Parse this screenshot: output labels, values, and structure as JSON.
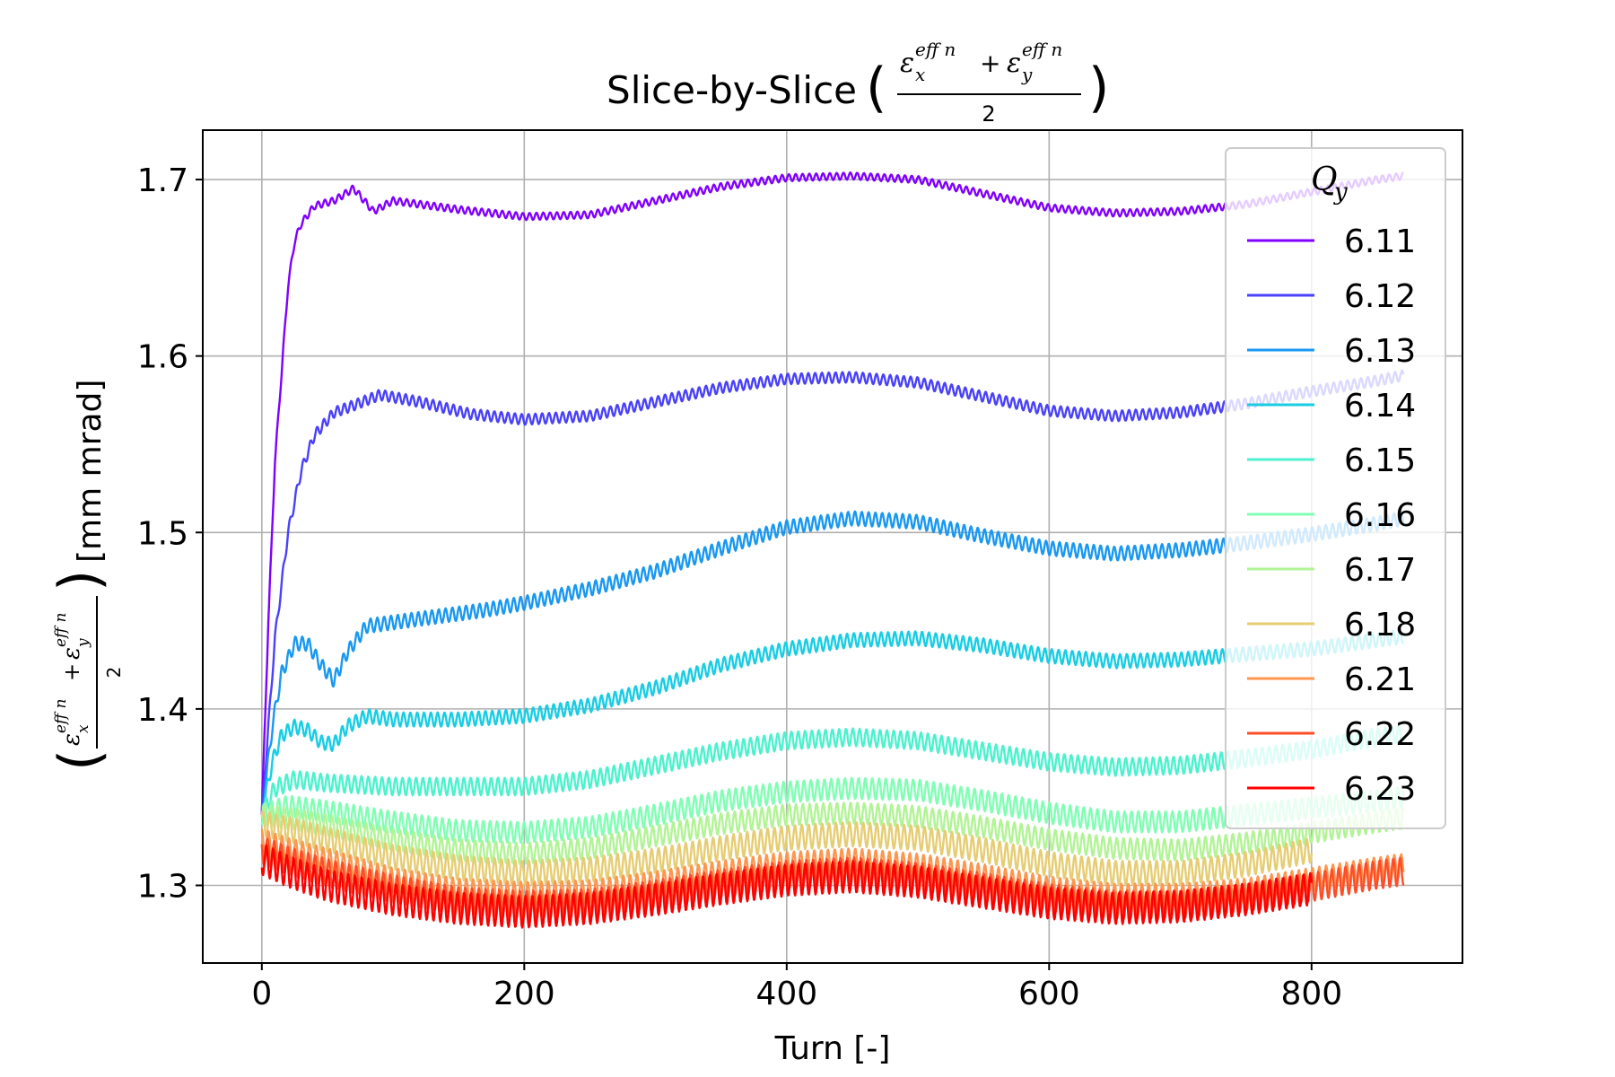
{
  "chart_data": {
    "type": "line",
    "title": "Slice-by-Slice",
    "xlabel": "Turn [-]",
    "ylabel_unit": "[mm mrad]",
    "ylabel_expr": {
      "numerator_left": "ε",
      "sub_x": "x",
      "sup_left": "eff n",
      "plus": "+",
      "numerator_right": "ε",
      "sub_y": "y",
      "sup_right": "eff n",
      "denominator": "2"
    },
    "xlim": [
      -45,
      915
    ],
    "ylim": [
      1.256,
      1.728
    ],
    "xticks": [
      0,
      200,
      400,
      600,
      800
    ],
    "yticks": [
      1.3,
      1.4,
      1.5,
      1.6,
      1.7
    ],
    "ytick_labels": [
      "1.3",
      "1.4",
      "1.5",
      "1.6",
      "1.7"
    ],
    "xtick_labels": [
      "0",
      "200",
      "400",
      "600",
      "800"
    ],
    "grid": true,
    "legend": {
      "title_base": "Q",
      "title_sub": "y",
      "placement": "top-right"
    },
    "series": [
      {
        "name": "6.11",
        "color": "#8000ff",
        "x_end": 870,
        "osc_amp": 0.002,
        "points": [
          [
            0,
            1.34
          ],
          [
            5,
            1.45
          ],
          [
            10,
            1.54
          ],
          [
            15,
            1.59
          ],
          [
            20,
            1.64
          ],
          [
            25,
            1.665
          ],
          [
            30,
            1.675
          ],
          [
            40,
            1.685
          ],
          [
            55,
            1.688
          ],
          [
            70,
            1.695
          ],
          [
            85,
            1.682
          ],
          [
            100,
            1.688
          ],
          [
            120,
            1.686
          ],
          [
            150,
            1.683
          ],
          [
            200,
            1.679
          ],
          [
            250,
            1.68
          ],
          [
            300,
            1.688
          ],
          [
            350,
            1.696
          ],
          [
            400,
            1.701
          ],
          [
            450,
            1.702
          ],
          [
            500,
            1.7
          ],
          [
            550,
            1.692
          ],
          [
            600,
            1.684
          ],
          [
            650,
            1.681
          ],
          [
            700,
            1.682
          ],
          [
            750,
            1.686
          ],
          [
            800,
            1.693
          ],
          [
            850,
            1.7
          ],
          [
            870,
            1.702
          ]
        ]
      },
      {
        "name": "6.12",
        "color": "#4a41fb",
        "x_end": 870,
        "osc_amp": 0.003,
        "points": [
          [
            0,
            1.34
          ],
          [
            10,
            1.44
          ],
          [
            20,
            1.5
          ],
          [
            30,
            1.535
          ],
          [
            40,
            1.555
          ],
          [
            55,
            1.568
          ],
          [
            70,
            1.572
          ],
          [
            90,
            1.578
          ],
          [
            120,
            1.574
          ],
          [
            160,
            1.567
          ],
          [
            200,
            1.564
          ],
          [
            250,
            1.566
          ],
          [
            300,
            1.574
          ],
          [
            350,
            1.582
          ],
          [
            400,
            1.587
          ],
          [
            450,
            1.588
          ],
          [
            500,
            1.585
          ],
          [
            550,
            1.577
          ],
          [
            600,
            1.569
          ],
          [
            650,
            1.566
          ],
          [
            700,
            1.568
          ],
          [
            750,
            1.573
          ],
          [
            800,
            1.58
          ],
          [
            850,
            1.586
          ],
          [
            870,
            1.589
          ]
        ]
      },
      {
        "name": "6.13",
        "color": "#1998f2",
        "x_end": 870,
        "osc_amp": 0.004,
        "points": [
          [
            0,
            1.34
          ],
          [
            8,
            1.39
          ],
          [
            15,
            1.42
          ],
          [
            25,
            1.437
          ],
          [
            35,
            1.437
          ],
          [
            45,
            1.425
          ],
          [
            55,
            1.416
          ],
          [
            65,
            1.432
          ],
          [
            80,
            1.447
          ],
          [
            100,
            1.449
          ],
          [
            130,
            1.452
          ],
          [
            170,
            1.456
          ],
          [
            200,
            1.46
          ],
          [
            250,
            1.468
          ],
          [
            300,
            1.478
          ],
          [
            350,
            1.491
          ],
          [
            400,
            1.503
          ],
          [
            450,
            1.508
          ],
          [
            500,
            1.506
          ],
          [
            550,
            1.498
          ],
          [
            600,
            1.491
          ],
          [
            650,
            1.488
          ],
          [
            700,
            1.49
          ],
          [
            750,
            1.494
          ],
          [
            800,
            1.499
          ],
          [
            850,
            1.505
          ],
          [
            870,
            1.508
          ]
        ]
      },
      {
        "name": "6.14",
        "color": "#18cde4",
        "x_end": 870,
        "osc_amp": 0.004,
        "points": [
          [
            0,
            1.34
          ],
          [
            8,
            1.37
          ],
          [
            15,
            1.385
          ],
          [
            25,
            1.39
          ],
          [
            35,
            1.388
          ],
          [
            45,
            1.381
          ],
          [
            55,
            1.38
          ],
          [
            65,
            1.39
          ],
          [
            80,
            1.396
          ],
          [
            100,
            1.394
          ],
          [
            150,
            1.394
          ],
          [
            200,
            1.396
          ],
          [
            250,
            1.402
          ],
          [
            300,
            1.412
          ],
          [
            350,
            1.425
          ],
          [
            400,
            1.434
          ],
          [
            450,
            1.439
          ],
          [
            500,
            1.44
          ],
          [
            550,
            1.436
          ],
          [
            600,
            1.43
          ],
          [
            650,
            1.427
          ],
          [
            700,
            1.428
          ],
          [
            750,
            1.431
          ],
          [
            800,
            1.434
          ],
          [
            850,
            1.439
          ],
          [
            870,
            1.441
          ]
        ]
      },
      {
        "name": "6.15",
        "color": "#4cf2ce",
        "x_end": 870,
        "osc_amp": 0.005,
        "points": [
          [
            0,
            1.34
          ],
          [
            10,
            1.355
          ],
          [
            25,
            1.36
          ],
          [
            50,
            1.358
          ],
          [
            100,
            1.356
          ],
          [
            150,
            1.356
          ],
          [
            200,
            1.356
          ],
          [
            250,
            1.36
          ],
          [
            300,
            1.368
          ],
          [
            350,
            1.376
          ],
          [
            400,
            1.382
          ],
          [
            450,
            1.384
          ],
          [
            500,
            1.382
          ],
          [
            550,
            1.376
          ],
          [
            600,
            1.37
          ],
          [
            650,
            1.367
          ],
          [
            700,
            1.368
          ],
          [
            750,
            1.372
          ],
          [
            800,
            1.377
          ],
          [
            850,
            1.384
          ],
          [
            870,
            1.386
          ]
        ]
      },
      {
        "name": "6.16",
        "color": "#80ffb4",
        "x_end": 870,
        "osc_amp": 0.006,
        "points": [
          [
            0,
            1.34
          ],
          [
            20,
            1.345
          ],
          [
            50,
            1.342
          ],
          [
            100,
            1.336
          ],
          [
            150,
            1.331
          ],
          [
            200,
            1.33
          ],
          [
            250,
            1.333
          ],
          [
            300,
            1.34
          ],
          [
            350,
            1.348
          ],
          [
            400,
            1.353
          ],
          [
            450,
            1.355
          ],
          [
            500,
            1.354
          ],
          [
            550,
            1.348
          ],
          [
            600,
            1.341
          ],
          [
            650,
            1.336
          ],
          [
            700,
            1.336
          ],
          [
            750,
            1.34
          ],
          [
            800,
            1.344
          ],
          [
            850,
            1.348
          ],
          [
            870,
            1.35
          ]
        ]
      },
      {
        "name": "6.17",
        "color": "#b2f396",
        "x_end": 870,
        "osc_amp": 0.006,
        "points": [
          [
            0,
            1.34
          ],
          [
            20,
            1.338
          ],
          [
            50,
            1.334
          ],
          [
            100,
            1.326
          ],
          [
            150,
            1.32
          ],
          [
            200,
            1.318
          ],
          [
            250,
            1.321
          ],
          [
            300,
            1.328
          ],
          [
            350,
            1.335
          ],
          [
            400,
            1.34
          ],
          [
            450,
            1.341
          ],
          [
            500,
            1.339
          ],
          [
            550,
            1.333
          ],
          [
            600,
            1.326
          ],
          [
            650,
            1.321
          ],
          [
            700,
            1.32
          ],
          [
            750,
            1.324
          ],
          [
            800,
            1.33
          ],
          [
            850,
            1.336
          ],
          [
            870,
            1.338
          ]
        ]
      },
      {
        "name": "6.18",
        "color": "#e6cd73",
        "x_end": 800,
        "osc_amp": 0.007,
        "points": [
          [
            0,
            1.335
          ],
          [
            20,
            1.332
          ],
          [
            50,
            1.326
          ],
          [
            100,
            1.316
          ],
          [
            150,
            1.31
          ],
          [
            200,
            1.307
          ],
          [
            250,
            1.309
          ],
          [
            300,
            1.314
          ],
          [
            350,
            1.321
          ],
          [
            400,
            1.327
          ],
          [
            450,
            1.329
          ],
          [
            500,
            1.327
          ],
          [
            550,
            1.32
          ],
          [
            600,
            1.312
          ],
          [
            650,
            1.307
          ],
          [
            700,
            1.307
          ],
          [
            750,
            1.312
          ],
          [
            800,
            1.32
          ]
        ]
      },
      {
        "name": "6.21",
        "color": "#ff964f",
        "x_end": 870,
        "osc_amp": 0.007,
        "points": [
          [
            0,
            1.325
          ],
          [
            20,
            1.32
          ],
          [
            50,
            1.314
          ],
          [
            100,
            1.303
          ],
          [
            150,
            1.297
          ],
          [
            200,
            1.295
          ],
          [
            250,
            1.296
          ],
          [
            300,
            1.301
          ],
          [
            350,
            1.307
          ],
          [
            400,
            1.312
          ],
          [
            450,
            1.314
          ],
          [
            500,
            1.311
          ],
          [
            550,
            1.305
          ],
          [
            600,
            1.298
          ],
          [
            650,
            1.294
          ],
          [
            700,
            1.294
          ],
          [
            750,
            1.297
          ],
          [
            800,
            1.303
          ],
          [
            850,
            1.309
          ],
          [
            870,
            1.311
          ]
        ]
      },
      {
        "name": "6.22",
        "color": "#ff4d27",
        "x_end": 870,
        "osc_amp": 0.008,
        "points": [
          [
            0,
            1.32
          ],
          [
            20,
            1.314
          ],
          [
            50,
            1.307
          ],
          [
            100,
            1.298
          ],
          [
            150,
            1.291
          ],
          [
            200,
            1.289
          ],
          [
            250,
            1.29
          ],
          [
            300,
            1.295
          ],
          [
            350,
            1.301
          ],
          [
            400,
            1.306
          ],
          [
            450,
            1.308
          ],
          [
            500,
            1.305
          ],
          [
            550,
            1.299
          ],
          [
            600,
            1.293
          ],
          [
            650,
            1.289
          ],
          [
            700,
            1.289
          ],
          [
            750,
            1.293
          ],
          [
            800,
            1.299
          ],
          [
            850,
            1.306
          ],
          [
            870,
            1.308
          ]
        ]
      },
      {
        "name": "6.23",
        "color": "#ff0000",
        "x_end": 800,
        "osc_amp": 0.009,
        "points": [
          [
            0,
            1.315
          ],
          [
            20,
            1.308
          ],
          [
            50,
            1.3
          ],
          [
            100,
            1.292
          ],
          [
            150,
            1.287
          ],
          [
            200,
            1.285
          ],
          [
            250,
            1.287
          ],
          [
            300,
            1.292
          ],
          [
            350,
            1.298
          ],
          [
            400,
            1.303
          ],
          [
            450,
            1.305
          ],
          [
            500,
            1.302
          ],
          [
            550,
            1.296
          ],
          [
            600,
            1.29
          ],
          [
            650,
            1.287
          ],
          [
            700,
            1.288
          ],
          [
            750,
            1.292
          ],
          [
            800,
            1.298
          ]
        ]
      }
    ]
  }
}
